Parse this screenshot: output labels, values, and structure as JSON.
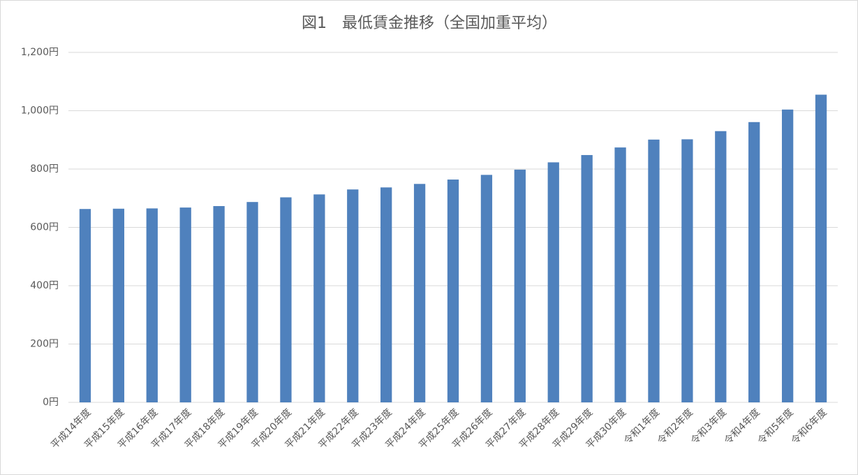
{
  "chart_data": {
    "type": "bar",
    "title": "図1　最低賃金推移（全国加重平均）",
    "categories": [
      "平成14年度",
      "平成15年度",
      "平成16年度",
      "平成17年度",
      "平成18年度",
      "平成19年度",
      "平成20年度",
      "平成21年度",
      "平成22年度",
      "平成23年度",
      "平成24年度",
      "平成25年度",
      "平成26年度",
      "平成27年度",
      "平成28年度",
      "平成29年度",
      "平成30年度",
      "令和1年度",
      "令和2年度",
      "令和3年度",
      "令和4年度",
      "令和5年度",
      "令和6年度"
    ],
    "values": [
      663,
      664,
      665,
      668,
      673,
      687,
      703,
      713,
      730,
      737,
      749,
      764,
      780,
      798,
      823,
      848,
      874,
      901,
      902,
      930,
      961,
      1004,
      1055
    ],
    "color": "#4f81bd",
    "ylim": [
      0,
      1200
    ],
    "yticks": [
      {
        "value": 0,
        "label": "0円"
      },
      {
        "value": 200,
        "label": "200円"
      },
      {
        "value": 400,
        "label": "400円"
      },
      {
        "value": 600,
        "label": "600円"
      },
      {
        "value": 800,
        "label": "800円"
      },
      {
        "value": 1000,
        "label": "1,000円"
      },
      {
        "value": 1200,
        "label": "1,200円"
      }
    ],
    "grid": true
  }
}
